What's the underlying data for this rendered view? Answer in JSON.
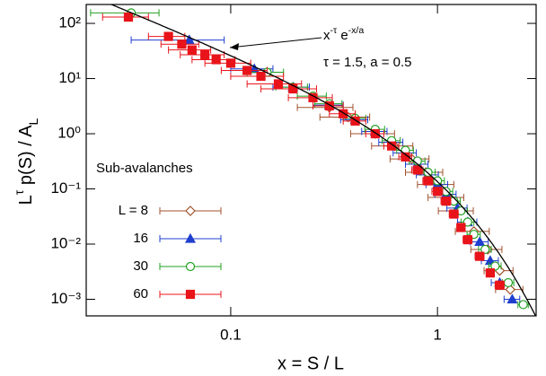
{
  "chart_data": {
    "type": "scatter",
    "xlabel": "x = S / L",
    "ylabel_parts": [
      {
        "text": "L"
      },
      {
        "text": "τ",
        "sup": true
      },
      {
        "text": " p(S) / A"
      },
      {
        "text": "L",
        "sub": true
      }
    ],
    "xlog": true,
    "ylog": true,
    "xlim": [
      0.02,
      3
    ],
    "ylim": [
      0.0005,
      220
    ],
    "xticks": [
      0.1,
      1
    ],
    "yticks": [
      {
        "value": 0.001,
        "label": "10⁻³"
      },
      {
        "value": 0.01,
        "label": "10⁻²"
      },
      {
        "value": 0.1,
        "label": "10⁻¹"
      },
      {
        "value": 1,
        "label": "10⁰"
      },
      {
        "value": 10,
        "label": "10¹"
      },
      {
        "value": 100,
        "label": "10²"
      }
    ],
    "legend_title": "Sub-avalanches",
    "legend_position": "lower-left",
    "fit": {
      "tau": 1.5,
      "a": 0.5,
      "color": "#000000",
      "formula_parts": [
        {
          "text": "x"
        },
        {
          "text": "-τ",
          "sup": true
        },
        {
          "text": " e"
        },
        {
          "text": "-x/a",
          "sup": true
        }
      ],
      "params_label": "τ = 1.5, a = 0.5"
    },
    "series": [
      {
        "name": "L =  8",
        "color": "#a0522d",
        "marker": "diamond",
        "filled": false,
        "x": [
          0.3,
          0.37,
          0.5,
          0.62,
          0.75,
          0.88,
          1.0,
          1.12,
          1.25,
          1.5,
          1.75,
          2.0,
          2.25
        ],
        "xerr": [
          0.09,
          0.1,
          0.12,
          0.14,
          0.16,
          0.18,
          0.2,
          0.22,
          0.24,
          0.28,
          0.3,
          0.32,
          0.34
        ],
        "values": [
          3.0,
          2.0,
          1.0,
          0.6,
          0.35,
          0.2,
          0.12,
          0.07,
          0.04,
          0.017,
          0.008,
          0.0033,
          0.0015
        ]
      },
      {
        "name": "16",
        "color": "#1f3fcf",
        "marker": "triangle",
        "filled": true,
        "x": [
          0.063,
          0.13,
          0.2,
          0.3,
          0.4,
          0.5,
          0.6,
          0.7,
          0.8,
          0.9,
          1.0,
          1.1,
          1.25,
          1.4,
          1.6,
          1.8,
          2.0,
          2.3
        ],
        "xerr": [
          0.03,
          0.03,
          0.04,
          0.05,
          0.06,
          0.07,
          0.08,
          0.09,
          0.1,
          0.11,
          0.12,
          0.13,
          0.14,
          0.15,
          0.16,
          0.17,
          0.18,
          0.2
        ],
        "values": [
          50,
          15,
          7,
          3.3,
          1.8,
          1.1,
          0.7,
          0.45,
          0.28,
          0.18,
          0.12,
          0.08,
          0.045,
          0.025,
          0.011,
          0.005,
          0.002,
          0.001
        ]
      },
      {
        "name": "30",
        "color": "#22a022",
        "marker": "circle",
        "filled": false,
        "x": [
          0.033,
          0.15,
          0.2,
          0.25,
          0.3,
          0.4,
          0.5,
          0.6,
          0.7,
          0.8,
          0.9,
          1.0,
          1.1,
          1.2,
          1.3,
          1.4,
          1.5,
          1.7,
          1.9,
          2.2,
          2.6
        ],
        "xerr": [
          0.012,
          0.03,
          0.035,
          0.04,
          0.045,
          0.05,
          0.055,
          0.06,
          0.065,
          0.07,
          0.075,
          0.08,
          0.085,
          0.09,
          0.095,
          0.1,
          0.11,
          0.12,
          0.13,
          0.14,
          0.15
        ],
        "values": [
          155,
          13,
          7,
          4.8,
          3.5,
          1.9,
          1.2,
          0.75,
          0.5,
          0.32,
          0.2,
          0.14,
          0.09,
          0.06,
          0.04,
          0.025,
          0.015,
          0.008,
          0.004,
          0.002,
          0.0008
        ]
      },
      {
        "name": "60",
        "color": "#e8141a",
        "marker": "square",
        "filled": true,
        "x": [
          0.032,
          0.05,
          0.058,
          0.065,
          0.075,
          0.085,
          0.1,
          0.12,
          0.14,
          0.17,
          0.2,
          0.25,
          0.3,
          0.35,
          0.4,
          0.5,
          0.6,
          0.7,
          0.8,
          0.9,
          1.0,
          1.1,
          1.2,
          1.3,
          1.4,
          1.6,
          1.8,
          2.0
        ],
        "xerr": [
          0.008,
          0.01,
          0.012,
          0.015,
          0.018,
          0.02,
          0.025,
          0.03,
          0.04,
          0.05,
          0.06,
          0.06,
          0.05,
          0.05,
          0.05,
          0.05,
          0.05,
          0.05,
          0.05,
          0.05,
          0.06,
          0.06,
          0.06,
          0.06,
          0.07,
          0.08,
          0.08,
          0.1
        ],
        "values": [
          130,
          58,
          42,
          33,
          27,
          22,
          19,
          14,
          11,
          8,
          6.5,
          4.5,
          3.2,
          2.3,
          1.7,
          1.0,
          0.6,
          0.38,
          0.22,
          0.14,
          0.09,
          0.06,
          0.035,
          0.02,
          0.012,
          0.006,
          0.003,
          0.0018
        ]
      }
    ]
  }
}
